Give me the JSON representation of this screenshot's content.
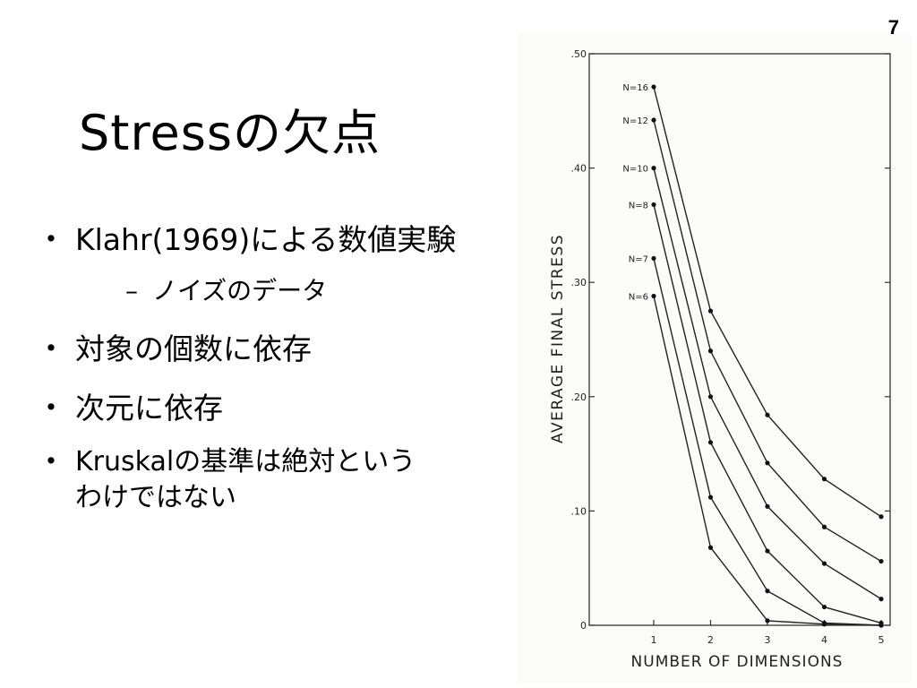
{
  "slide": {
    "page_number": "7",
    "title": "Stressの欠点",
    "bullets": [
      {
        "marker": "・",
        "text": "Klahr(1969)による数値実験"
      },
      {
        "marker": "・",
        "text": "対象の個数に依存"
      },
      {
        "marker": "・",
        "text": "次元に依存"
      },
      {
        "marker": "・",
        "text_line1": "Kruskalの基準は絶対という",
        "text_line2": "わけではない"
      }
    ],
    "sub_bullet": {
      "marker": "–",
      "text": "ノイズのデータ"
    }
  },
  "chart_data": {
    "type": "line",
    "xlabel": "NUMBER OF DIMENSIONS",
    "ylabel": "AVERAGE FINAL STRESS",
    "x": [
      1,
      2,
      3,
      4,
      5
    ],
    "x_tick_labels": [
      "1",
      "2",
      "3",
      "4",
      "5"
    ],
    "y_tick_labels": [
      ".50",
      ".40",
      ".30",
      ".20",
      ".10",
      "0"
    ],
    "y_ticks": [
      0.5,
      0.4,
      0.3,
      0.2,
      0.1,
      0
    ],
    "ylim": [
      0,
      0.5
    ],
    "xlim": [
      1,
      5
    ],
    "grid": false,
    "series": [
      {
        "name": "N=16",
        "values": [
          0.471,
          0.275,
          0.184,
          0.128,
          0.095
        ]
      },
      {
        "name": "N=12",
        "values": [
          0.442,
          0.24,
          0.142,
          0.086,
          0.056
        ]
      },
      {
        "name": "N=10",
        "values": [
          0.4,
          0.2,
          0.104,
          0.054,
          0.023
        ]
      },
      {
        "name": "N=8",
        "values": [
          0.368,
          0.16,
          0.065,
          0.016,
          0.002
        ]
      },
      {
        "name": "N=7",
        "values": [
          0.321,
          0.112,
          0.03,
          0.002,
          0.0
        ]
      },
      {
        "name": "N=6",
        "values": [
          0.288,
          0.068,
          0.004,
          0.001,
          0.0
        ]
      }
    ]
  }
}
